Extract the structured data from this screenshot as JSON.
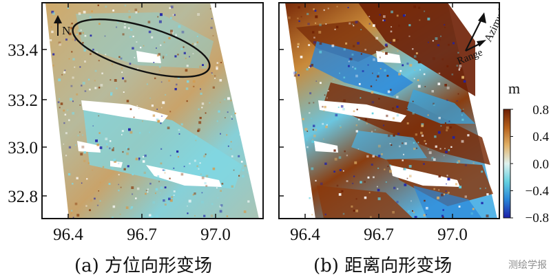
{
  "chart_data": [
    {
      "type": "heatmap",
      "panel": "a",
      "title": "(a) 方位向形变场",
      "xlabel": "",
      "ylabel": "",
      "x_ticks": [
        "96.4",
        "96.7",
        "97.0"
      ],
      "x_tick_values": [
        96.4,
        96.7,
        97.0
      ],
      "y_ticks": [
        "33.4",
        "33.2",
        "33.0",
        "32.8"
      ],
      "y_tick_values": [
        33.4,
        33.2,
        33.0,
        32.8
      ],
      "xlim": [
        96.3,
        97.2
      ],
      "ylim": [
        32.7,
        33.56
      ],
      "north_arrow": "N",
      "annotation": "ellipse around area of scattered deformation points",
      "colormap": "diverging brown-white-blue",
      "value_range_m": [
        -0.8,
        0.8
      ]
    },
    {
      "type": "heatmap",
      "panel": "b",
      "title": "(b) 距离向形变场",
      "xlabel": "",
      "ylabel": "",
      "x_ticks": [
        "96.4",
        "96.7",
        "97.0"
      ],
      "x_tick_values": [
        96.4,
        96.7,
        97.0
      ],
      "xlim": [
        96.3,
        97.2
      ],
      "ylim": [
        32.7,
        33.56
      ],
      "direction_labels": {
        "azimuth": "Azimuth",
        "range": "Range"
      },
      "colormap": "diverging brown-white-blue",
      "value_range_m": [
        -0.8,
        0.8
      ]
    }
  ],
  "colorbar": {
    "unit": "m",
    "ticks": [
      "0.8",
      "0.4",
      "0.0",
      "−0.4",
      "−0.8"
    ],
    "tick_values": [
      0.8,
      0.4,
      0.0,
      -0.4,
      -0.8
    ],
    "colors": [
      "#6e1f04",
      "#b5611c",
      "#e0b066",
      "#dff2ee",
      "#62cfe0",
      "#2a86d8",
      "#1d1fa8"
    ]
  },
  "captions": {
    "a": "(a) 方位向形变场",
    "b": "(b) 距离向形变场"
  },
  "watermark": "测绘学报"
}
